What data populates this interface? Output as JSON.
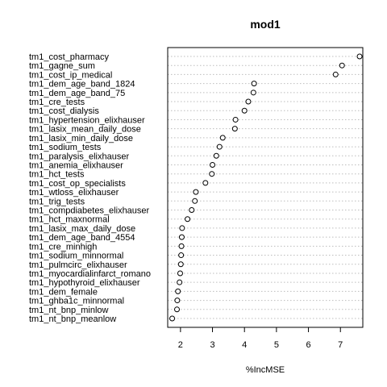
{
  "chart_data": {
    "type": "scatter",
    "title": "mod1",
    "xlabel": "%IncMSE",
    "ylabel": "",
    "xlim": [
      1.6,
      7.7
    ],
    "x_ticks": [
      2,
      3,
      4,
      5,
      6,
      7
    ],
    "grid": "dotted horizontal guide lines",
    "categories": [
      "tm1_cost_pharmacy",
      "tm1_gagne_sum",
      "tm1_cost_ip_medical",
      "tm1_dem_age_band_1824",
      "tm1_dem_age_band_75",
      "tm1_cre_tests",
      "tm1_cost_dialysis",
      "tm1_hypertension_elixhauser",
      "tm1_lasix_mean_daily_dose",
      "tm1_lasix_min_daily_dose",
      "tm1_sodium_tests",
      "tm1_paralysis_elixhauser",
      "tm1_anemia_elixhauser",
      "tm1_hct_tests",
      "tm1_cost_op_specialists",
      "tm1_wtloss_elixhauser",
      "tm1_trig_tests",
      "tm1_compdiabetes_elixhauser",
      "tm1_hct_maxnormal",
      "tm1_lasix_max_daily_dose",
      "tm1_dem_age_band_4554",
      "tm1_cre_minhigh",
      "tm1_sodium_minnormal",
      "tm1_pulmcirc_elixhauser",
      "tm1_myocardialinfarct_romano",
      "tm1_hypothyroid_elixhauser",
      "tm1_dem_female",
      "tm1_ghba1c_minnormal",
      "tm1_nt_bnp_minlow",
      "tm1_nt_bnp_meanlow"
    ],
    "values": [
      7.6,
      7.05,
      6.85,
      4.3,
      4.28,
      4.12,
      4.0,
      3.72,
      3.7,
      3.32,
      3.22,
      3.12,
      3.0,
      2.98,
      2.78,
      2.48,
      2.45,
      2.35,
      2.22,
      2.05,
      2.04,
      2.03,
      2.02,
      2.01,
      1.99,
      1.97,
      1.92,
      1.9,
      1.89,
      1.74
    ]
  }
}
